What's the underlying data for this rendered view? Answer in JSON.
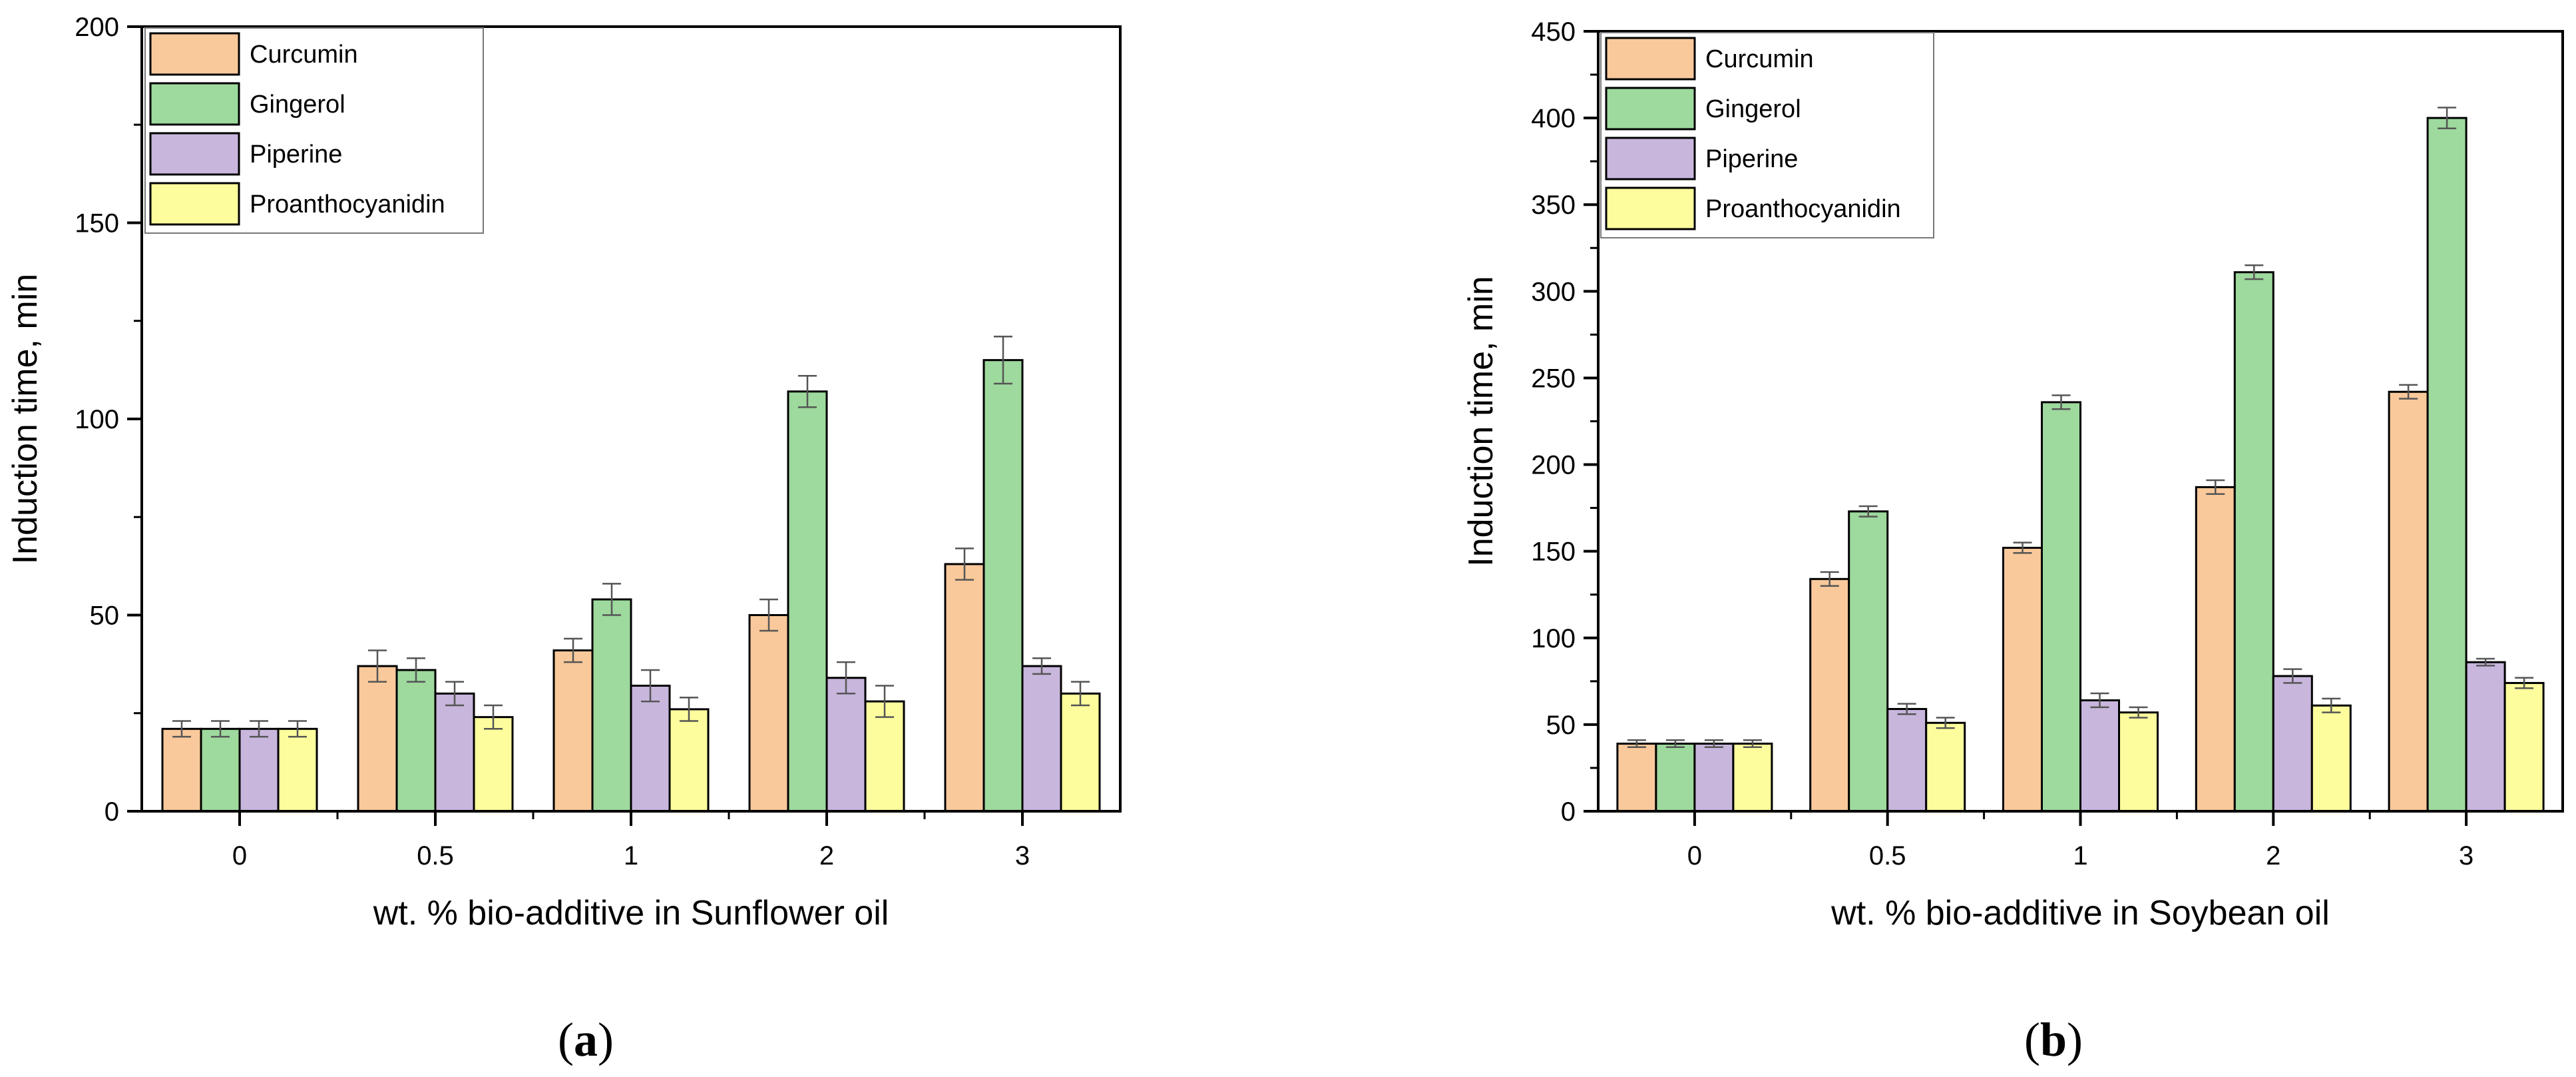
{
  "colors": {
    "curcumin": "#f9c99b",
    "gingerol": "#9ed99e",
    "piperine": "#c8b6dd",
    "proanthocyanidin": "#fdfd9e",
    "outline": "#000000",
    "error_bar": "#555555"
  },
  "chart_data": [
    {
      "panel": "a",
      "type": "bar",
      "caption": {
        "open": "(",
        "letter": "a",
        "close": ")"
      },
      "xlabel": "wt. % bio-additive in Sunflower oil",
      "ylabel": "Induction time, min",
      "ylim": [
        0,
        200
      ],
      "yticks": [
        0,
        50,
        100,
        150,
        200
      ],
      "yticklabels": [
        "0",
        "50",
        "100",
        "150",
        "200"
      ],
      "categories": [
        "0",
        "0.5",
        "1",
        "2",
        "3"
      ],
      "legend_position": "top-left",
      "series": [
        {
          "name": "Curcumin",
          "key": "curcumin",
          "values": [
            21,
            37,
            41,
            50,
            63
          ],
          "errors": [
            2,
            4,
            3,
            4,
            4
          ]
        },
        {
          "name": "Gingerol",
          "key": "gingerol",
          "values": [
            21,
            36,
            54,
            107,
            115
          ],
          "errors": [
            2,
            3,
            4,
            4,
            6
          ]
        },
        {
          "name": "Piperine",
          "key": "piperine",
          "values": [
            21,
            30,
            32,
            34,
            37
          ],
          "errors": [
            2,
            3,
            4,
            4,
            2
          ]
        },
        {
          "name": "Proanthocyanidin",
          "key": "proanthocyanidin",
          "values": [
            21,
            24,
            26,
            28,
            30
          ],
          "errors": [
            2,
            3,
            3,
            4,
            3
          ]
        }
      ]
    },
    {
      "panel": "b",
      "type": "bar",
      "caption": {
        "open": "(",
        "letter": "b",
        "close": ")"
      },
      "xlabel": "wt. % bio-additive in Soybean oil",
      "ylabel": "Induction time, min",
      "ylim": [
        0,
        450
      ],
      "yticks": [
        0,
        50,
        100,
        150,
        200,
        250,
        300,
        350,
        400,
        450
      ],
      "yticklabels": [
        "0",
        "50",
        "100",
        "150",
        "200",
        "250",
        "300",
        "350",
        "400",
        "450"
      ],
      "categories": [
        "0",
        "0.5",
        "1",
        "2",
        "3"
      ],
      "legend_position": "top-left",
      "series": [
        {
          "name": "Curcumin",
          "key": "curcumin",
          "values": [
            39,
            134,
            152,
            187,
            242
          ],
          "errors": [
            2,
            4,
            3,
            4,
            4
          ]
        },
        {
          "name": "Gingerol",
          "key": "gingerol",
          "values": [
            39,
            173,
            236,
            311,
            400
          ],
          "errors": [
            2,
            3,
            4,
            4,
            6
          ]
        },
        {
          "name": "Piperine",
          "key": "piperine",
          "values": [
            39,
            59,
            64,
            78,
            86
          ],
          "errors": [
            2,
            3,
            4,
            4,
            2
          ]
        },
        {
          "name": "Proanthocyanidin",
          "key": "proanthocyanidin",
          "values": [
            39,
            51,
            57,
            61,
            74
          ],
          "errors": [
            2,
            3,
            3,
            4,
            3
          ]
        }
      ]
    }
  ]
}
